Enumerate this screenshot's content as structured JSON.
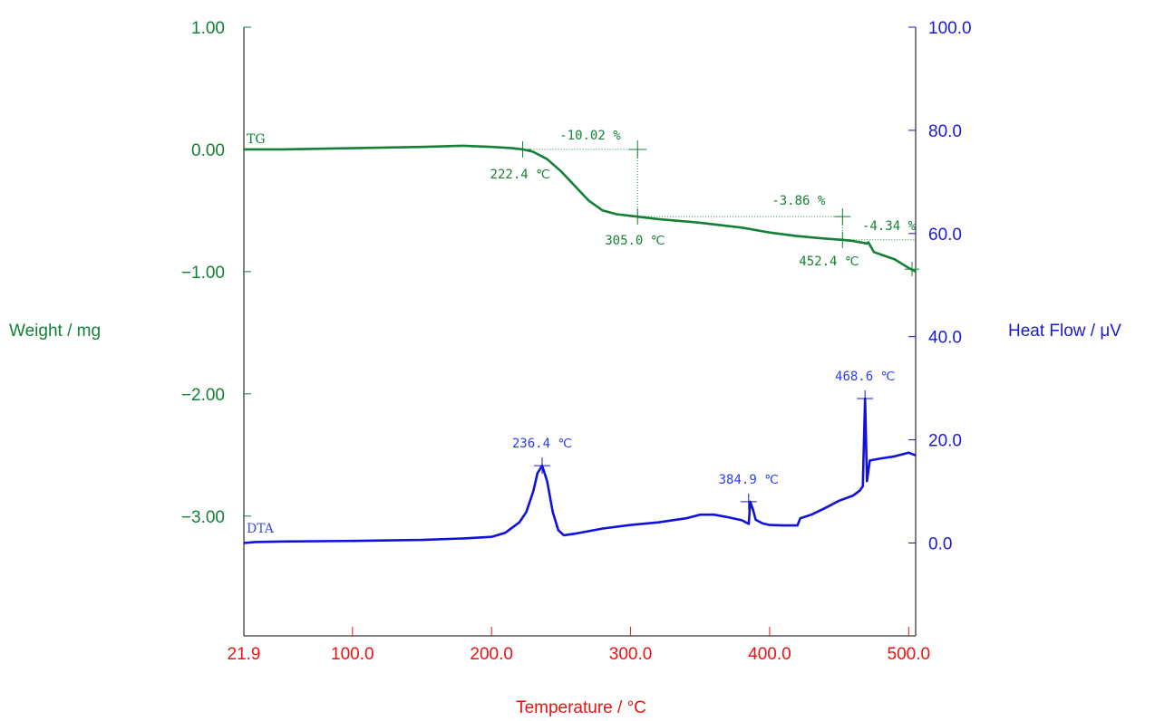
{
  "chart_data": {
    "type": "line",
    "xlabel": "Temperature / °C",
    "ylabel_left": "Weight / mg",
    "ylabel_right": "Heat Flow / μV",
    "xlim": [
      21.9,
      505
    ],
    "ylim_left": [
      -3.98,
      1.0
    ],
    "ylim_right": [
      -18.0,
      100.0
    ],
    "x_ticks": [
      {
        "value": 21.9,
        "label": "21.9"
      },
      {
        "value": 100,
        "label": "100.0"
      },
      {
        "value": 200,
        "label": "200.0"
      },
      {
        "value": 300,
        "label": "300.0"
      },
      {
        "value": 400,
        "label": "400.0"
      },
      {
        "value": 500,
        "label": "500.0"
      }
    ],
    "y_left_ticks": [
      {
        "value": 1.0,
        "label": "1.00"
      },
      {
        "value": 0.0,
        "label": "0.00"
      },
      {
        "value": -1.0,
        "label": "−1.00"
      },
      {
        "value": -2.0,
        "label": "−2.00"
      },
      {
        "value": -3.0,
        "label": "−3.00"
      }
    ],
    "y_right_ticks": [
      {
        "value": 100.0,
        "label": "100.0"
      },
      {
        "value": 80.0,
        "label": "80.0"
      },
      {
        "value": 60.0,
        "label": "60.0"
      },
      {
        "value": 40.0,
        "label": "40.0"
      },
      {
        "value": 20.0,
        "label": "20.0"
      },
      {
        "value": 0.0,
        "label": "0.0"
      }
    ],
    "colors": {
      "tg": "#138036",
      "dta": "#1010e0",
      "x_axis": "#ee1111",
      "annot_tg": "#138036",
      "annot_dta": "#2a3cf0"
    },
    "series": [
      {
        "name": "TG",
        "axis": "left",
        "x": [
          21.9,
          50,
          100,
          150,
          180,
          200,
          215,
          222.4,
          230,
          240,
          250,
          260,
          270,
          280,
          290,
          305,
          320,
          350,
          380,
          400,
          420,
          440,
          452.4,
          460,
          470,
          471,
          475,
          480,
          490,
          500,
          505
        ],
        "y": [
          0.0,
          0.0,
          0.01,
          0.02,
          0.03,
          0.02,
          0.01,
          0.0,
          -0.02,
          -0.08,
          -0.18,
          -0.3,
          -0.42,
          -0.5,
          -0.53,
          -0.55,
          -0.57,
          -0.6,
          -0.64,
          -0.68,
          -0.71,
          -0.73,
          -0.74,
          -0.75,
          -0.77,
          -0.76,
          -0.84,
          -0.86,
          -0.9,
          -0.97,
          -1.0
        ]
      },
      {
        "name": "DTA",
        "axis": "right",
        "x": [
          21.9,
          30,
          50,
          100,
          150,
          180,
          200,
          210,
          220,
          225,
          230,
          233,
          236.4,
          240,
          244,
          248,
          252,
          260,
          280,
          300,
          320,
          340,
          350,
          360,
          370,
          380,
          385,
          386,
          388,
          390,
          395,
          400,
          410,
          420,
          422,
          430,
          440,
          450,
          460,
          465,
          467,
          468.6,
          470,
          472,
          480,
          490,
          500,
          505
        ],
        "y": [
          0.0,
          0.2,
          0.3,
          0.4,
          0.6,
          0.9,
          1.2,
          2.0,
          4.0,
          6.0,
          10.0,
          13.5,
          15.0,
          12.0,
          6.0,
          2.5,
          1.5,
          1.8,
          2.8,
          3.5,
          4.0,
          4.8,
          5.5,
          5.5,
          5.0,
          4.4,
          3.7,
          8.0,
          6.5,
          4.5,
          3.8,
          3.5,
          3.4,
          3.4,
          4.8,
          5.5,
          6.8,
          8.2,
          9.2,
          10.2,
          11.0,
          28.0,
          12.0,
          16.0,
          16.4,
          16.8,
          17.5,
          17.0
        ]
      }
    ],
    "series_labels": {
      "tg": "TG",
      "dta": "DTA"
    },
    "annotations": {
      "tg_onset1": {
        "label": "222.4 ℃",
        "x": 222.4,
        "y": 0.0
      },
      "tg_step1": {
        "label": "-10.02 %",
        "x": 305,
        "y": 0.0
      },
      "tg_onset2": {
        "label": "305.0 ℃",
        "x": 305,
        "y": -0.55
      },
      "tg_step2": {
        "label": "-3.86 %",
        "x": 452.4,
        "y": -0.55
      },
      "tg_step3": {
        "label": "-4.34 %",
        "x": 505,
        "y": -0.74
      },
      "tg_onset3": {
        "label": "452.4 ℃",
        "x": 452.4,
        "y": -0.74
      },
      "dta_peak1": {
        "label": "236.4 ℃",
        "x": 236.4,
        "y": 15.0
      },
      "dta_peak2": {
        "label": "384.9 ℃",
        "x": 384.9,
        "y": 8.0
      },
      "dta_peak3": {
        "label": "468.6 ℃",
        "x": 468.6,
        "y": 28.0
      }
    }
  }
}
